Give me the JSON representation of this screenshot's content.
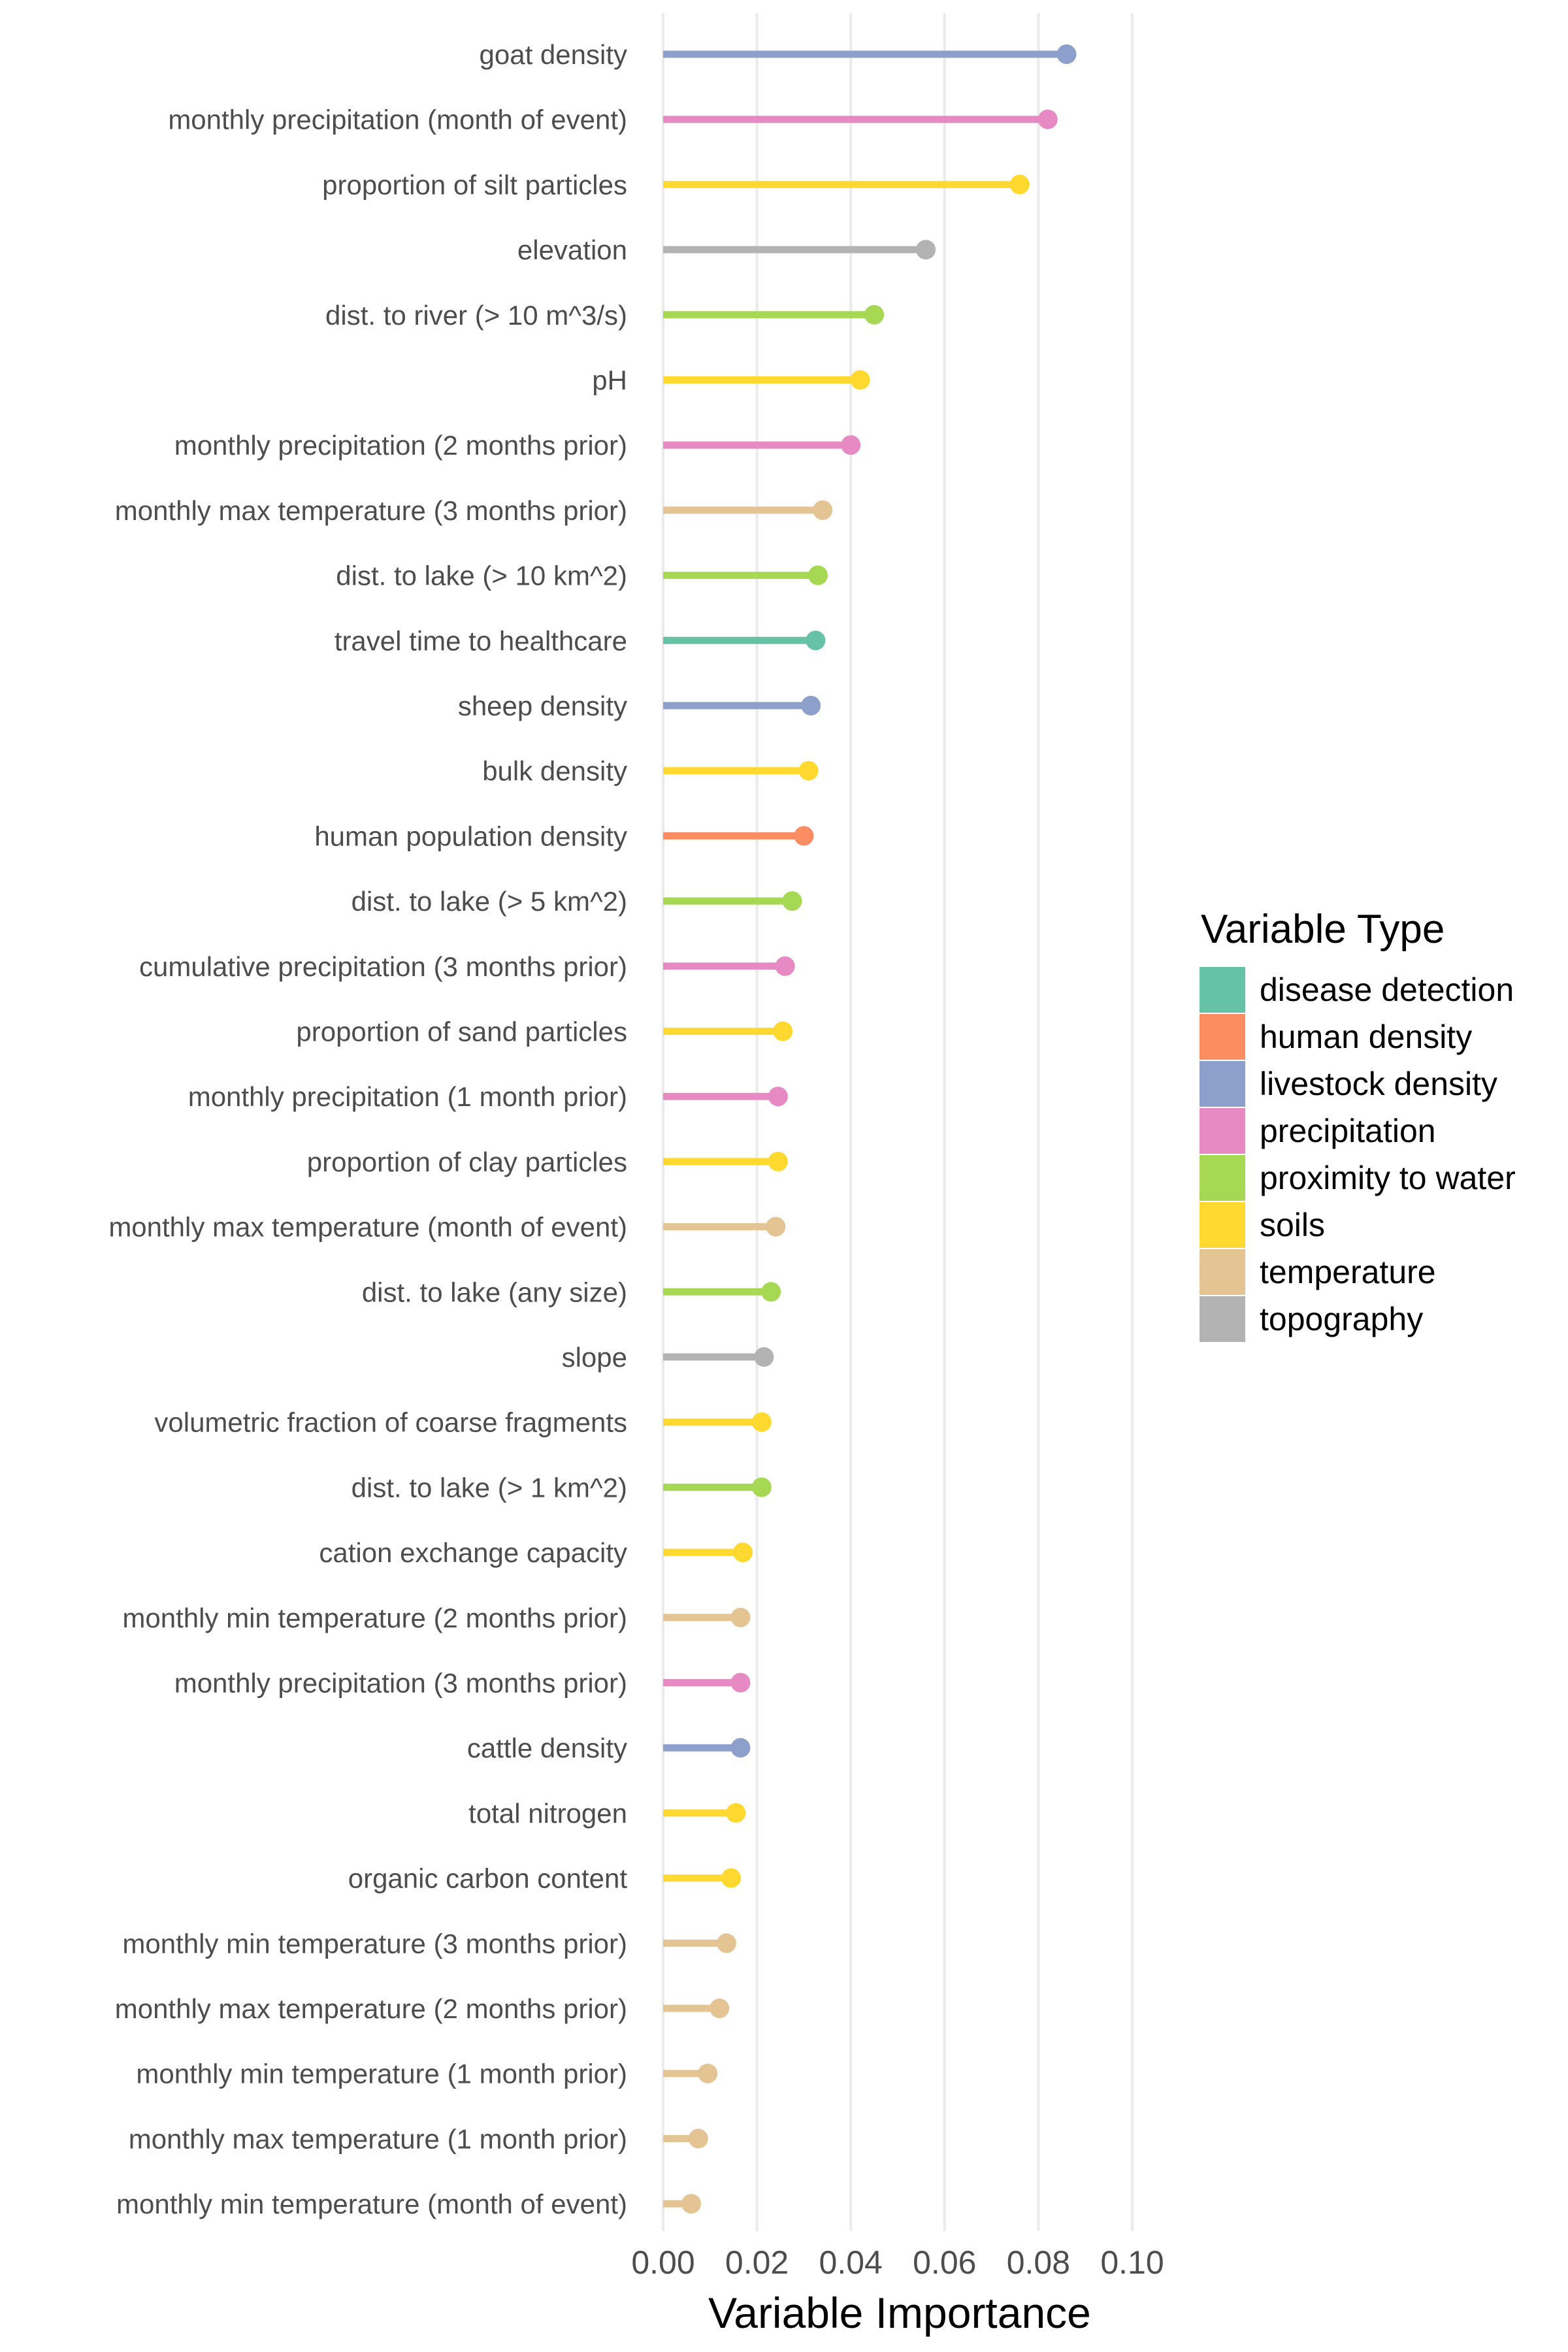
{
  "chart_data": {
    "type": "lollipop",
    "orientation": "horizontal",
    "xlabel": "Variable Importance",
    "ylabel": "",
    "xlim": [
      0,
      0.1
    ],
    "xticks": [
      "0.00",
      "0.02",
      "0.04",
      "0.06",
      "0.08",
      "0.10"
    ],
    "xtick_values": [
      0,
      0.02,
      0.04,
      0.06,
      0.08,
      0.1
    ],
    "grid": "vertical major gridlines",
    "legend": {
      "title": "Variable Type",
      "placement": "right",
      "entries": [
        {
          "label": "disease detection",
          "color": "#66c2a5"
        },
        {
          "label": "human density",
          "color": "#fc8d62"
        },
        {
          "label": "livestock density",
          "color": "#8da0cb"
        },
        {
          "label": "precipitation",
          "color": "#e78ac3"
        },
        {
          "label": "proximity to water",
          "color": "#a6d854"
        },
        {
          "label": "soils",
          "color": "#ffd92f"
        },
        {
          "label": "temperature",
          "color": "#e5c494"
        },
        {
          "label": "topography",
          "color": "#b3b3b3"
        }
      ]
    },
    "items": [
      {
        "label": "goat density",
        "value": 0.086,
        "type": "livestock density"
      },
      {
        "label": "monthly precipitation (month of event)",
        "value": 0.082,
        "type": "precipitation"
      },
      {
        "label": "proportion of silt particles",
        "value": 0.076,
        "type": "soils"
      },
      {
        "label": "elevation",
        "value": 0.056,
        "type": "topography"
      },
      {
        "label": "dist. to river (> 10 m^3/s)",
        "value": 0.045,
        "type": "proximity to water"
      },
      {
        "label": "pH",
        "value": 0.042,
        "type": "soils"
      },
      {
        "label": "monthly precipitation (2 months prior)",
        "value": 0.04,
        "type": "precipitation"
      },
      {
        "label": "monthly max temperature (3 months prior)",
        "value": 0.034,
        "type": "temperature"
      },
      {
        "label": "dist. to lake (> 10 km^2)",
        "value": 0.033,
        "type": "proximity to water"
      },
      {
        "label": "travel time to healthcare",
        "value": 0.0325,
        "type": "disease detection"
      },
      {
        "label": "sheep density",
        "value": 0.0315,
        "type": "livestock density"
      },
      {
        "label": "bulk density",
        "value": 0.031,
        "type": "soils"
      },
      {
        "label": "human population density",
        "value": 0.03,
        "type": "human density"
      },
      {
        "label": "dist. to lake (> 5 km^2)",
        "value": 0.0275,
        "type": "proximity to water"
      },
      {
        "label": "cumulative precipitation (3 months prior)",
        "value": 0.026,
        "type": "precipitation"
      },
      {
        "label": "proportion of sand particles",
        "value": 0.0255,
        "type": "soils"
      },
      {
        "label": "monthly precipitation (1 month prior)",
        "value": 0.0245,
        "type": "precipitation"
      },
      {
        "label": "proportion of clay particles",
        "value": 0.0245,
        "type": "soils"
      },
      {
        "label": "monthly max temperature (month of event)",
        "value": 0.024,
        "type": "temperature"
      },
      {
        "label": "dist. to lake (any size)",
        "value": 0.023,
        "type": "proximity to water"
      },
      {
        "label": "slope",
        "value": 0.0215,
        "type": "topography"
      },
      {
        "label": "volumetric fraction of coarse fragments",
        "value": 0.021,
        "type": "soils"
      },
      {
        "label": "dist. to lake (> 1 km^2)",
        "value": 0.021,
        "type": "proximity to water"
      },
      {
        "label": "cation exchange capacity",
        "value": 0.017,
        "type": "soils"
      },
      {
        "label": "monthly min temperature (2 months prior)",
        "value": 0.0165,
        "type": "temperature"
      },
      {
        "label": "monthly precipitation (3 months prior)",
        "value": 0.0165,
        "type": "precipitation"
      },
      {
        "label": "cattle density",
        "value": 0.0165,
        "type": "livestock density"
      },
      {
        "label": "total nitrogen",
        "value": 0.0155,
        "type": "soils"
      },
      {
        "label": "organic carbon content",
        "value": 0.0145,
        "type": "soils"
      },
      {
        "label": "monthly min temperature (3 months prior)",
        "value": 0.0135,
        "type": "temperature"
      },
      {
        "label": "monthly max temperature (2 months prior)",
        "value": 0.012,
        "type": "temperature"
      },
      {
        "label": "monthly min temperature (1 month prior)",
        "value": 0.0095,
        "type": "temperature"
      },
      {
        "label": "monthly max temperature (1 month prior)",
        "value": 0.0075,
        "type": "temperature"
      },
      {
        "label": "monthly min temperature (month of event)",
        "value": 0.006,
        "type": "temperature"
      }
    ]
  }
}
